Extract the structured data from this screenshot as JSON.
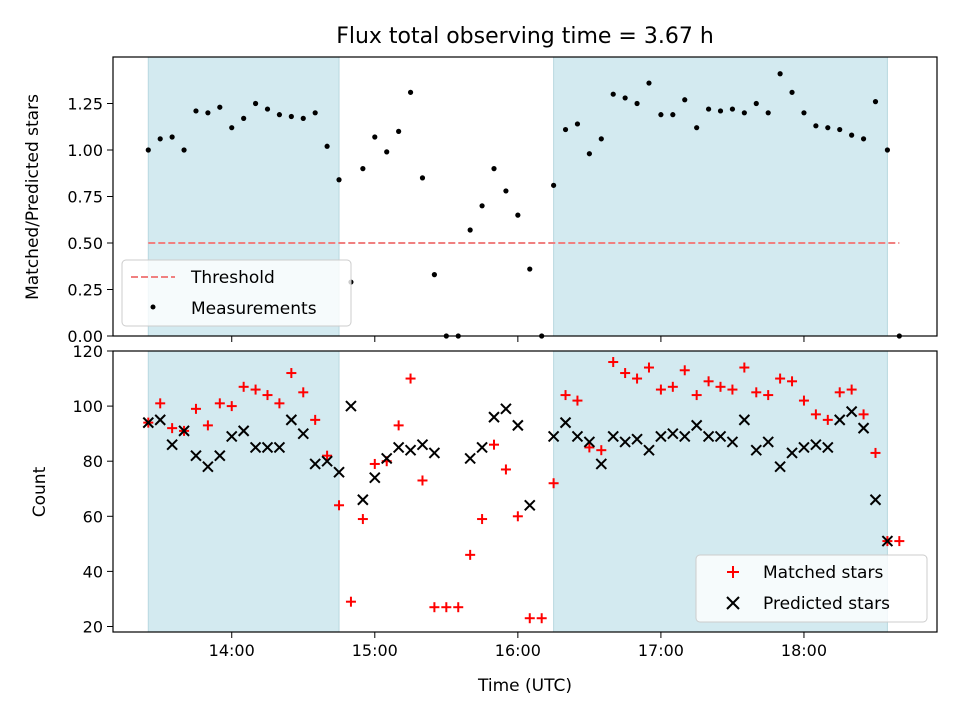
{
  "chart_data": [
    {
      "type": "scatter",
      "title": "Flux total observing time = 3.67 h",
      "xlabel": "",
      "ylabel": "Matched/Predicted stars",
      "xlim_hours": [
        13.17,
        18.93
      ],
      "ylim": [
        0,
        1.5
      ],
      "yticks": [
        "0.00",
        "0.25",
        "0.50",
        "0.75",
        "1.00",
        "1.25"
      ],
      "yticks_values": [
        0,
        0.25,
        0.5,
        0.75,
        1.0,
        1.25
      ],
      "grid": false,
      "legend_position": "bottom-left",
      "shaded_intervals": [
        {
          "start": "13:25",
          "end": "14:45",
          "color": "#d3eaf0"
        },
        {
          "start": "16:15",
          "end": "18:35",
          "color": "#d3eaf0"
        }
      ],
      "series": [
        {
          "name": "Threshold",
          "style": "dashed-line",
          "color": "#f08080",
          "x": [
            "13:25",
            "18:40"
          ],
          "y": [
            0.5,
            0.5
          ]
        },
        {
          "name": "Measurements",
          "style": "dots",
          "color": "#000000",
          "x": [
            "13:25",
            "13:30",
            "13:35",
            "13:40",
            "13:45",
            "13:50",
            "13:55",
            "14:00",
            "14:05",
            "14:10",
            "14:15",
            "14:20",
            "14:25",
            "14:30",
            "14:35",
            "14:40",
            "14:45",
            "14:50",
            "14:55",
            "15:00",
            "15:05",
            "15:10",
            "15:15",
            "15:20",
            "15:25",
            "15:30",
            "15:35",
            "15:40",
            "15:45",
            "15:50",
            "15:55",
            "16:00",
            "16:05",
            "16:10",
            "16:15",
            "16:20",
            "16:25",
            "16:30",
            "16:35",
            "16:40",
            "16:45",
            "16:50",
            "16:55",
            "17:00",
            "17:05",
            "17:10",
            "17:15",
            "17:20",
            "17:25",
            "17:30",
            "17:35",
            "17:40",
            "17:45",
            "17:50",
            "17:55",
            "18:00",
            "18:05",
            "18:10",
            "18:15",
            "18:20",
            "18:25",
            "18:30",
            "18:35",
            "18:40"
          ],
          "y": [
            1.0,
            1.06,
            1.07,
            1.0,
            1.21,
            1.2,
            1.23,
            1.12,
            1.17,
            1.25,
            1.22,
            1.19,
            1.18,
            1.17,
            1.2,
            1.02,
            0.84,
            0.29,
            0.9,
            1.07,
            0.99,
            1.1,
            1.31,
            0.85,
            0.33,
            0.0,
            0.0,
            0.57,
            0.7,
            0.9,
            0.78,
            0.65,
            0.36,
            0.0,
            0.81,
            1.11,
            1.14,
            0.98,
            1.06,
            1.3,
            1.28,
            1.25,
            1.36,
            1.19,
            1.19,
            1.27,
            1.12,
            1.22,
            1.21,
            1.22,
            1.2,
            1.25,
            1.2,
            1.41,
            1.31,
            1.2,
            1.13,
            1.12,
            1.11,
            1.08,
            1.06,
            1.26,
            1.0,
            0.0
          ]
        }
      ]
    },
    {
      "type": "scatter",
      "title": "",
      "xlabel": "Time (UTC)",
      "ylabel": "Count",
      "xlim_hours": [
        13.17,
        18.93
      ],
      "ylim": [
        18,
        120
      ],
      "xticks": [
        "14:00",
        "15:00",
        "16:00",
        "17:00",
        "18:00"
      ],
      "xticks_hours": [
        14,
        15,
        16,
        17,
        18
      ],
      "yticks": [
        "20",
        "40",
        "60",
        "80",
        "100",
        "120"
      ],
      "yticks_values": [
        20,
        40,
        60,
        80,
        100,
        120
      ],
      "grid": false,
      "legend_position": "bottom-right",
      "shaded_intervals": [
        {
          "start": "13:25",
          "end": "14:45",
          "color": "#d3eaf0"
        },
        {
          "start": "16:15",
          "end": "18:35",
          "color": "#d3eaf0"
        }
      ],
      "series": [
        {
          "name": "Matched stars",
          "marker": "+",
          "color": "#ff0000",
          "x": [
            "13:25",
            "13:30",
            "13:35",
            "13:40",
            "13:45",
            "13:50",
            "13:55",
            "14:00",
            "14:05",
            "14:10",
            "14:15",
            "14:20",
            "14:25",
            "14:30",
            "14:35",
            "14:40",
            "14:45",
            "14:50",
            "14:55",
            "15:00",
            "15:05",
            "15:10",
            "15:15",
            "15:20",
            "15:25",
            "15:30",
            "15:35",
            "15:40",
            "15:45",
            "15:50",
            "15:55",
            "16:00",
            "16:05",
            "16:10",
            "16:15",
            "16:20",
            "16:25",
            "16:30",
            "16:35",
            "16:40",
            "16:45",
            "16:50",
            "16:55",
            "17:00",
            "17:05",
            "17:10",
            "17:15",
            "17:20",
            "17:25",
            "17:30",
            "17:35",
            "17:40",
            "17:45",
            "17:50",
            "17:55",
            "18:00",
            "18:05",
            "18:10",
            "18:15",
            "18:20",
            "18:25",
            "18:30",
            "18:35",
            "18:40"
          ],
          "y": [
            94,
            101,
            92,
            91,
            99,
            93,
            101,
            100,
            107,
            106,
            104,
            101,
            112,
            105,
            95,
            82,
            64,
            29,
            59,
            79,
            80,
            93,
            110,
            73,
            27,
            27,
            27,
            46,
            59,
            86,
            77,
            60,
            23,
            23,
            72,
            104,
            102,
            85,
            84,
            116,
            112,
            110,
            114,
            106,
            107,
            113,
            104,
            109,
            107,
            106,
            114,
            105,
            104,
            110,
            109,
            102,
            97,
            95,
            105,
            106,
            97,
            83,
            51,
            51
          ]
        },
        {
          "name": "Predicted stars",
          "marker": "x",
          "color": "#000000",
          "x": [
            "13:25",
            "13:30",
            "13:35",
            "13:40",
            "13:45",
            "13:50",
            "13:55",
            "14:00",
            "14:05",
            "14:10",
            "14:15",
            "14:20",
            "14:25",
            "14:30",
            "14:35",
            "14:40",
            "14:45",
            "14:50",
            "14:55",
            "15:00",
            "15:05",
            "15:10",
            "15:15",
            "15:20",
            "15:25",
            "15:40",
            "15:45",
            "15:50",
            "15:55",
            "16:00",
            "16:05",
            "16:15",
            "16:20",
            "16:25",
            "16:30",
            "16:35",
            "16:40",
            "16:45",
            "16:50",
            "16:55",
            "17:00",
            "17:05",
            "17:10",
            "17:15",
            "17:20",
            "17:25",
            "17:30",
            "17:35",
            "17:40",
            "17:45",
            "17:50",
            "17:55",
            "18:00",
            "18:05",
            "18:10",
            "18:15",
            "18:20",
            "18:25",
            "18:30",
            "18:35"
          ],
          "y": [
            94,
            95,
            86,
            91,
            82,
            78,
            82,
            89,
            91,
            85,
            85,
            85,
            95,
            90,
            79,
            80,
            76,
            100,
            66,
            74,
            81,
            85,
            84,
            86,
            83,
            81,
            85,
            96,
            99,
            93,
            64,
            89,
            94,
            89,
            87,
            79,
            89,
            87,
            88,
            84,
            89,
            90,
            89,
            93,
            89,
            89,
            87,
            95,
            84,
            87,
            78,
            83,
            85,
            86,
            85,
            95,
            98,
            92,
            66,
            51
          ]
        }
      ]
    }
  ]
}
